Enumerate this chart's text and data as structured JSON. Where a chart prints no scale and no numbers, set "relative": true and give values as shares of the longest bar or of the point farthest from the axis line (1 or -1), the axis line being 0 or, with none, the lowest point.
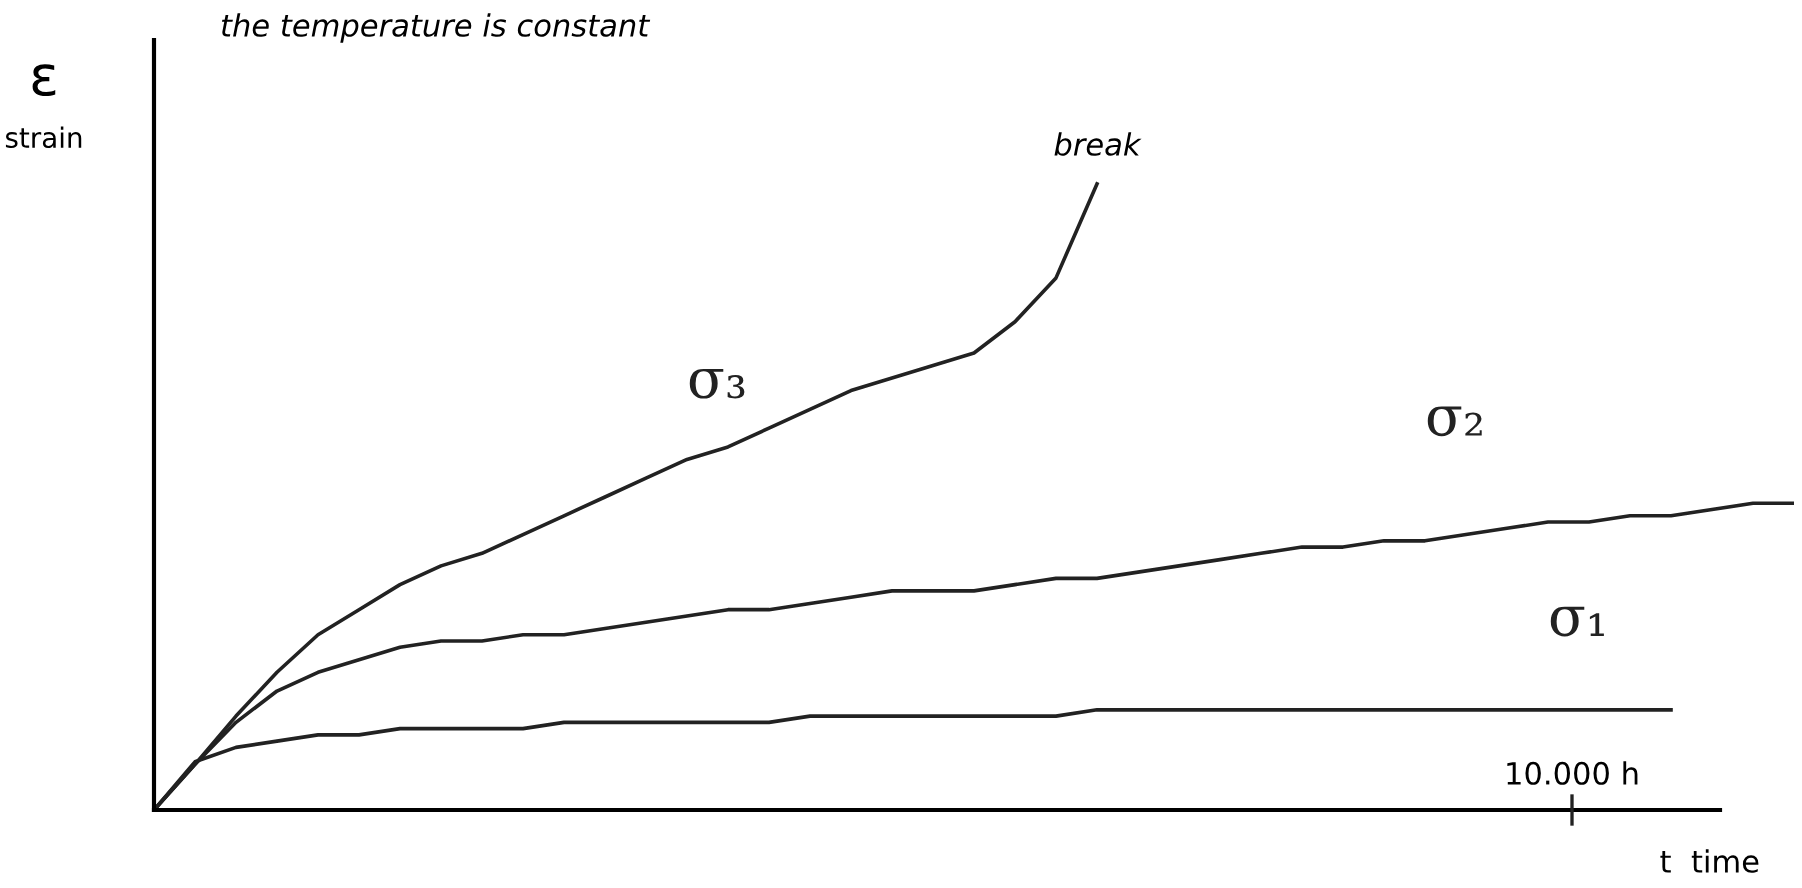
{
  "chart_data": {
    "type": "line",
    "relative": true,
    "ylabel": "ε\nstrain",
    "xlabel": "t  time",
    "categories": [
      null,
      null,
      null,
      null,
      null,
      null,
      null,
      null,
      null,
      null,
      null,
      null,
      null,
      null,
      null,
      null,
      null,
      null,
      null,
      null,
      null,
      null,
      null,
      null,
      null,
      null,
      null,
      null,
      null,
      null,
      null,
      null,
      null,
      null,
      null,
      null,
      null,
      null,
      null,
      null,
      null
    ],
    "annotations": [
      "the temperature is constant",
      "break",
      "10.000 h"
    ],
    "line_style": "solid",
    "series": [
      {
        "name": "σ₁",
        "color": "#222222",
        "values": [
          0,
          0.077,
          0.1,
          0.11,
          0.12,
          0.12,
          0.13,
          0.13,
          0.13,
          0.13,
          0.14,
          0.14,
          0.14,
          0.14,
          0.14,
          0.14,
          0.15,
          0.15,
          0.15,
          0.15,
          0.15,
          0.15,
          0.15,
          0.16,
          0.16,
          0.16,
          0.16,
          0.16,
          0.16,
          0.16,
          0.16,
          0.16,
          0.16,
          0.16,
          0.16,
          0.16,
          0.16,
          0.16,
          null,
          null,
          null
        ]
      },
      {
        "name": "σ₂",
        "color": "#222222",
        "values": [
          0,
          0.073,
          0.14,
          0.19,
          0.22,
          0.24,
          0.26,
          0.27,
          0.27,
          0.28,
          0.28,
          0.29,
          0.3,
          0.31,
          0.32,
          0.32,
          0.33,
          0.34,
          0.35,
          0.35,
          0.35,
          0.36,
          0.37,
          0.37,
          0.38,
          0.39,
          0.4,
          0.41,
          0.42,
          0.42,
          0.43,
          0.43,
          0.44,
          0.45,
          0.46,
          0.46,
          0.47,
          0.47,
          0.48,
          0.49,
          0.49
        ]
      },
      {
        "name": "σ₃",
        "color": "#222222",
        "values": [
          0,
          0.073,
          0.15,
          0.22,
          0.28,
          0.32,
          0.36,
          0.39,
          0.41,
          0.44,
          0.47,
          0.5,
          0.53,
          0.56,
          0.58,
          0.61,
          0.64,
          0.67,
          0.69,
          0.71,
          0.73,
          0.78,
          0.85,
          1.0,
          null,
          null,
          null,
          null,
          null,
          null,
          null,
          null,
          null,
          null,
          null,
          null,
          null,
          null,
          null,
          null,
          null
        ]
      }
    ]
  }
}
